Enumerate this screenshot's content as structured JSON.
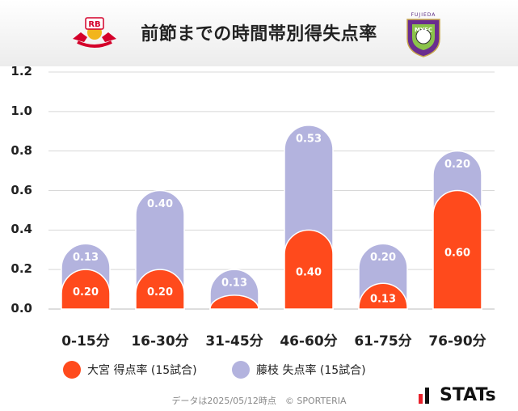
{
  "title": "前節までの時間帯別得失点率",
  "colors": {
    "home": "#ff4a1c",
    "away": "#b3b3de",
    "grid": "#d8d8d8"
  },
  "logos": {
    "left_text": "RB",
    "right_text": "FUJIEDA",
    "right_badge": "MYFC"
  },
  "chart_data": {
    "type": "bar",
    "stacked": true,
    "categories": [
      "0-15分",
      "16-30分",
      "31-45分",
      "46-60分",
      "61-75分",
      "76-90分"
    ],
    "series": [
      {
        "name": "大宮 得点率 (15試合)",
        "values": [
          0.2,
          0.2,
          0.07,
          0.4,
          0.13,
          0.6
        ],
        "labels": [
          "0.20",
          "0.20",
          "",
          "0.40",
          "0.13",
          "0.60"
        ]
      },
      {
        "name": "藤枝 失点率 (15試合)",
        "values": [
          0.13,
          0.4,
          0.13,
          0.53,
          0.2,
          0.2
        ],
        "labels": [
          "0.13",
          "0.40",
          "0.13",
          "0.53",
          "0.20",
          "0.20"
        ]
      }
    ],
    "ylim": [
      0,
      1.2
    ],
    "yticks": [
      "0.0",
      "0.2",
      "0.4",
      "0.6",
      "0.8",
      "1.0",
      "1.2"
    ],
    "grid": true,
    "legend": "bottom"
  },
  "legend": {
    "home_label": "大宮 得点率 (15試合)",
    "away_label": "藤枝 失点率 (15試合)"
  },
  "footer": "データは2025/05/12時点　© SPORTERIA",
  "brand": "STATs"
}
